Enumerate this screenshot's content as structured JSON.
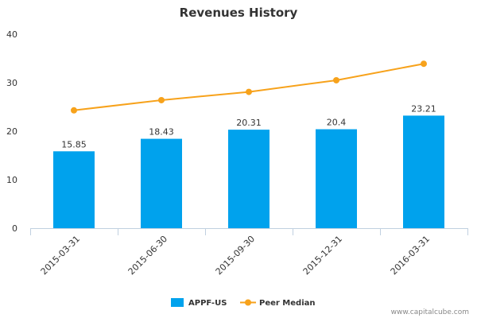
{
  "chart_data": {
    "type": "bar",
    "title": "Revenues History",
    "xlabel": "",
    "ylabel": "",
    "categories": [
      "2015-03-31",
      "2015-06-30",
      "2015-09-30",
      "2015-12-31",
      "2016-03-31"
    ],
    "ylim": [
      0,
      40
    ],
    "yticks": [
      0,
      10,
      20,
      30,
      40
    ],
    "grid": false,
    "legend_position": "bottom",
    "series": [
      {
        "name": "APPF-US",
        "type": "bar",
        "color": "#00a2ed",
        "values": [
          15.85,
          18.43,
          20.31,
          20.4,
          23.21
        ],
        "labels": [
          "15.85",
          "18.43",
          "20.31",
          "20.4",
          "23.21"
        ]
      },
      {
        "name": "Peer Median",
        "type": "line",
        "color": "#f7a21b",
        "values": [
          24.3,
          26.4,
          28.1,
          30.5,
          33.9
        ]
      }
    ]
  },
  "credit": "www.capitalcube.com"
}
